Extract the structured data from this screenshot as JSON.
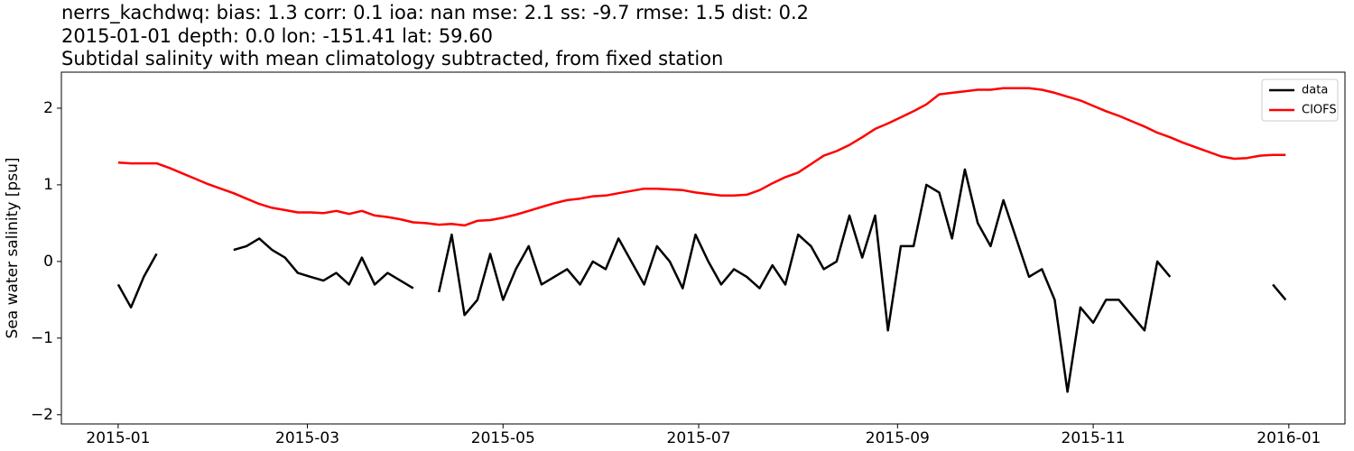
{
  "chart_data": {
    "type": "line",
    "title_lines": [
      "nerrs_kachdwq: bias: 1.3  corr: 0.1  ioa: nan  mse: 2.1  ss: -9.7  rmse: 1.5  dist: 0.2",
      "2015-01-01 depth: 0.0 lon: -151.41 lat: 59.60",
      "Subtidal salinity with mean climatology subtracted, from fixed station"
    ],
    "y_label": "Sea water salinity [psu]",
    "x": [
      0,
      4,
      8,
      12,
      16,
      20,
      24,
      28,
      32,
      36,
      40,
      44,
      48,
      52,
      56,
      60,
      64,
      68,
      72,
      76,
      80,
      84,
      88,
      92,
      96,
      100,
      104,
      108,
      112,
      116,
      120,
      124,
      128,
      132,
      136,
      140,
      144,
      148,
      152,
      156,
      160,
      164,
      168,
      172,
      176,
      180,
      184,
      188,
      192,
      196,
      200,
      204,
      208,
      212,
      216,
      220,
      224,
      228,
      232,
      236,
      240,
      244,
      248,
      252,
      256,
      260,
      264,
      268,
      272,
      276,
      280,
      284,
      288,
      292,
      296,
      300,
      304,
      308,
      312,
      316,
      320,
      324,
      328,
      332,
      336,
      340,
      344,
      348,
      352,
      356,
      360,
      364
    ],
    "series": [
      {
        "name": "data",
        "color": "#000000",
        "values": [
          -0.3,
          -0.6,
          -0.2,
          0.1,
          null,
          null,
          null,
          null,
          null,
          0.15,
          0.2,
          0.3,
          0.15,
          0.05,
          -0.15,
          -0.2,
          -0.25,
          -0.15,
          -0.3,
          0.05,
          -0.3,
          -0.15,
          -0.25,
          -0.35,
          null,
          -0.4,
          0.35,
          -0.7,
          -0.5,
          0.1,
          -0.5,
          -0.1,
          0.2,
          -0.3,
          -0.2,
          -0.1,
          -0.3,
          0.0,
          -0.1,
          0.3,
          0.0,
          -0.3,
          0.2,
          0.0,
          -0.35,
          0.35,
          0.0,
          -0.3,
          -0.1,
          -0.2,
          -0.35,
          -0.05,
          -0.3,
          0.35,
          0.2,
          -0.1,
          0.0,
          0.6,
          0.05,
          0.6,
          -0.9,
          0.2,
          0.2,
          1.0,
          0.9,
          0.3,
          1.2,
          0.5,
          0.2,
          0.8,
          0.3,
          -0.2,
          -0.1,
          -0.5,
          -1.7,
          -0.6,
          -0.8,
          -0.5,
          -0.5,
          -0.7,
          -0.9,
          0.0,
          -0.2,
          null,
          null,
          null,
          null,
          null,
          null,
          null,
          -0.3,
          -0.5
        ]
      },
      {
        "name": "CIOFS",
        "color": "#ff0000",
        "values": [
          1.29,
          1.28,
          1.28,
          1.28,
          1.22,
          1.15,
          1.08,
          1.01,
          0.95,
          0.89,
          0.82,
          0.75,
          0.7,
          0.67,
          0.64,
          0.64,
          0.63,
          0.66,
          0.62,
          0.66,
          0.6,
          0.58,
          0.55,
          0.51,
          0.5,
          0.48,
          0.49,
          0.47,
          0.53,
          0.54,
          0.57,
          0.61,
          0.66,
          0.71,
          0.76,
          0.8,
          0.82,
          0.85,
          0.86,
          0.89,
          0.92,
          0.95,
          0.95,
          0.94,
          0.93,
          0.9,
          0.88,
          0.86,
          0.86,
          0.87,
          0.93,
          1.02,
          1.1,
          1.16,
          1.27,
          1.38,
          1.44,
          1.52,
          1.62,
          1.73,
          1.8,
          1.88,
          1.96,
          2.05,
          2.18,
          2.2,
          2.22,
          2.24,
          2.24,
          2.26,
          2.26,
          2.26,
          2.24,
          2.2,
          2.15,
          2.1,
          2.03,
          1.96,
          1.9,
          1.83,
          1.76,
          1.68,
          1.62,
          1.55,
          1.49,
          1.43,
          1.37,
          1.34,
          1.35,
          1.38,
          1.39,
          1.39
        ]
      }
    ],
    "xlim": [
      -17.7,
      382.5
    ],
    "xticks": [
      {
        "value": 0,
        "label": "2015-01"
      },
      {
        "value": 59,
        "label": "2015-03"
      },
      {
        "value": 120,
        "label": "2015-05"
      },
      {
        "value": 181,
        "label": "2015-07"
      },
      {
        "value": 243,
        "label": "2015-09"
      },
      {
        "value": 304,
        "label": "2015-11"
      },
      {
        "value": 365,
        "label": "2016-01"
      }
    ],
    "ylim": [
      -2.12,
      2.47
    ],
    "yticks": [
      {
        "value": -2,
        "label": "−2"
      },
      {
        "value": -1,
        "label": "−1"
      },
      0,
      1,
      2
    ],
    "grid": false,
    "legend": "upper right"
  }
}
